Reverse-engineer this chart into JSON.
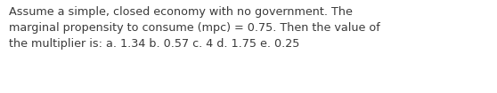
{
  "text": "Assume a simple, closed economy with no government. The\nmarginal propensity to consume (mpc) = 0.75. Then the value of\nthe multiplier is: a. 1.34 b. 0.57 c. 4 d. 1.75 e. 0.25",
  "background_color": "#ffffff",
  "text_color": "#3a3a3a",
  "font_size": 9.2,
  "fig_width": 5.58,
  "fig_height": 1.05,
  "dpi": 100
}
